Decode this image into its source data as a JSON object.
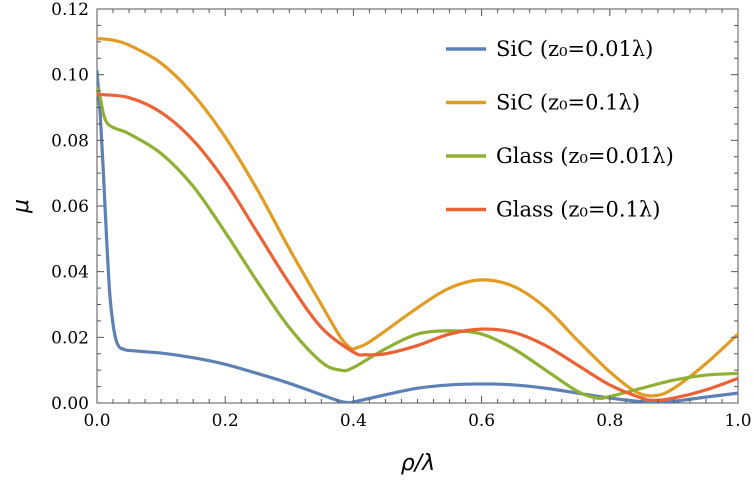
{
  "chart_data": {
    "type": "line",
    "xlabel": "ρ/λ",
    "ylabel": "μ",
    "xlim": [
      0.0,
      1.0
    ],
    "ylim": [
      0.0,
      0.12
    ],
    "x_ticks": [
      0.0,
      0.2,
      0.4,
      0.6,
      0.8,
      1.0
    ],
    "x_tick_labels": [
      "0.0",
      "0.2",
      "0.4",
      "0.6",
      "0.8",
      "1.0"
    ],
    "y_ticks": [
      0.0,
      0.02,
      0.04,
      0.06,
      0.08,
      0.1,
      0.12
    ],
    "y_tick_labels": [
      "0.00",
      "0.02",
      "0.04",
      "0.06",
      "0.08",
      "0.10",
      "0.12"
    ],
    "grid": false,
    "legend_position": "top-right",
    "series": [
      {
        "name": "SiC (z₀=0.01λ)",
        "color": "#5e81b5",
        "points": [
          [
            0.0,
            0.101
          ],
          [
            0.005,
            0.088
          ],
          [
            0.01,
            0.07
          ],
          [
            0.015,
            0.05
          ],
          [
            0.02,
            0.033
          ],
          [
            0.025,
            0.024
          ],
          [
            0.03,
            0.019
          ],
          [
            0.035,
            0.017
          ],
          [
            0.04,
            0.0165
          ],
          [
            0.05,
            0.016
          ],
          [
            0.1,
            0.0152
          ],
          [
            0.15,
            0.0138
          ],
          [
            0.2,
            0.0118
          ],
          [
            0.25,
            0.009
          ],
          [
            0.3,
            0.006
          ],
          [
            0.35,
            0.0025
          ],
          [
            0.38,
            0.0005
          ],
          [
            0.39,
            0.0002
          ],
          [
            0.4,
            0.0003
          ],
          [
            0.45,
            0.0025
          ],
          [
            0.5,
            0.0045
          ],
          [
            0.55,
            0.0055
          ],
          [
            0.6,
            0.0058
          ],
          [
            0.65,
            0.0055
          ],
          [
            0.7,
            0.0045
          ],
          [
            0.75,
            0.003
          ],
          [
            0.8,
            0.0015
          ],
          [
            0.85,
            0.0004
          ],
          [
            0.88,
            0.0001
          ],
          [
            0.9,
            0.0005
          ],
          [
            0.95,
            0.0018
          ],
          [
            1.0,
            0.003
          ]
        ]
      },
      {
        "name": "SiC (z₀=0.1λ)",
        "color": "#e19c24",
        "points": [
          [
            0.0,
            0.111
          ],
          [
            0.025,
            0.1105
          ],
          [
            0.05,
            0.109
          ],
          [
            0.1,
            0.1035
          ],
          [
            0.15,
            0.094
          ],
          [
            0.2,
            0.081
          ],
          [
            0.25,
            0.065
          ],
          [
            0.3,
            0.047
          ],
          [
            0.35,
            0.03
          ],
          [
            0.38,
            0.02
          ],
          [
            0.395,
            0.0168
          ],
          [
            0.4,
            0.0165
          ],
          [
            0.42,
            0.018
          ],
          [
            0.45,
            0.022
          ],
          [
            0.5,
            0.029
          ],
          [
            0.55,
            0.035
          ],
          [
            0.6,
            0.0375
          ],
          [
            0.65,
            0.0355
          ],
          [
            0.7,
            0.029
          ],
          [
            0.75,
            0.019
          ],
          [
            0.8,
            0.0095
          ],
          [
            0.84,
            0.0035
          ],
          [
            0.87,
            0.0022
          ],
          [
            0.9,
            0.0045
          ],
          [
            0.95,
            0.012
          ],
          [
            1.0,
            0.021
          ]
        ]
      },
      {
        "name": "Glass (z₀=0.01λ)",
        "color": "#8fb032",
        "points": [
          [
            0.0,
            0.096
          ],
          [
            0.005,
            0.093
          ],
          [
            0.01,
            0.088
          ],
          [
            0.015,
            0.0855
          ],
          [
            0.02,
            0.0845
          ],
          [
            0.03,
            0.0835
          ],
          [
            0.05,
            0.082
          ],
          [
            0.1,
            0.076
          ],
          [
            0.15,
            0.066
          ],
          [
            0.2,
            0.052
          ],
          [
            0.25,
            0.037
          ],
          [
            0.3,
            0.023
          ],
          [
            0.35,
            0.0125
          ],
          [
            0.38,
            0.01
          ],
          [
            0.4,
            0.0108
          ],
          [
            0.45,
            0.0165
          ],
          [
            0.5,
            0.021
          ],
          [
            0.55,
            0.022
          ],
          [
            0.6,
            0.021
          ],
          [
            0.65,
            0.0165
          ],
          [
            0.7,
            0.01
          ],
          [
            0.75,
            0.0035
          ],
          [
            0.78,
            0.0015
          ],
          [
            0.8,
            0.002
          ],
          [
            0.85,
            0.0045
          ],
          [
            0.9,
            0.007
          ],
          [
            0.95,
            0.0085
          ],
          [
            1.0,
            0.009
          ]
        ]
      },
      {
        "name": "Glass (z₀=0.1λ)",
        "color": "#eb6235",
        "points": [
          [
            0.0,
            0.094
          ],
          [
            0.05,
            0.093
          ],
          [
            0.1,
            0.0885
          ],
          [
            0.15,
            0.08
          ],
          [
            0.2,
            0.0675
          ],
          [
            0.25,
            0.052
          ],
          [
            0.3,
            0.0365
          ],
          [
            0.35,
            0.023
          ],
          [
            0.4,
            0.0155
          ],
          [
            0.42,
            0.0147
          ],
          [
            0.45,
            0.015
          ],
          [
            0.5,
            0.0175
          ],
          [
            0.55,
            0.021
          ],
          [
            0.6,
            0.0225
          ],
          [
            0.65,
            0.0215
          ],
          [
            0.7,
            0.0175
          ],
          [
            0.75,
            0.0115
          ],
          [
            0.8,
            0.0055
          ],
          [
            0.85,
            0.0015
          ],
          [
            0.87,
            0.0008
          ],
          [
            0.9,
            0.0015
          ],
          [
            0.95,
            0.004
          ],
          [
            1.0,
            0.0075
          ]
        ]
      }
    ]
  }
}
